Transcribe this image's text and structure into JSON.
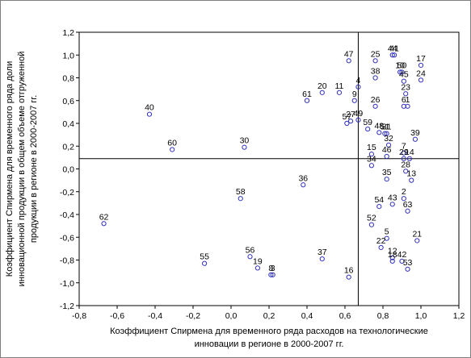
{
  "chart_data": {
    "type": "scatter",
    "title": "",
    "xlabel_lines": [
      "Коэффициент Спирмена для временного ряда расходов на технологические",
      "инновации в регионе в 2000-2007 гг."
    ],
    "ylabel_lines": [
      "Коэффициент Спирмена для временного ряда доли",
      "инновационной продукции в общем объеме отгруженной",
      "продукции в регионе в 2000-2007 гг."
    ],
    "xlim": [
      -0.8,
      1.2
    ],
    "ylim": [
      -1.2,
      1.2
    ],
    "xticks": [
      -0.8,
      -0.6,
      -0.4,
      -0.2,
      0.0,
      0.2,
      0.4,
      0.6,
      0.8,
      1.0,
      1.2
    ],
    "yticks": [
      -1.2,
      -1.0,
      -0.8,
      -0.6,
      -0.4,
      -0.2,
      0.0,
      0.2,
      0.4,
      0.6,
      0.8,
      1.0,
      1.2
    ],
    "xtick_labels": [
      "-0,8",
      "-0,6",
      "-0,4",
      "-0,2",
      "0,0",
      "0,2",
      "0,4",
      "0,6",
      "0,8",
      "1,0",
      "1,2"
    ],
    "ytick_labels": [
      "-1,2",
      "-1,0",
      "-0,8",
      "-0,6",
      "-0,4",
      "-0,2",
      "0,0",
      "0,2",
      "0,4",
      "0,6",
      "0,8",
      "1,0",
      "1,2"
    ],
    "grid": false,
    "ref_lines": {
      "x": 0.67,
      "y": 0.09
    },
    "colors": {
      "marker": "#3030c0",
      "ref_line": "#000000",
      "axis": "#000000"
    },
    "points": [
      {
        "label": "62",
        "x": -0.67,
        "y": -0.48
      },
      {
        "label": "40",
        "x": -0.43,
        "y": 0.48
      },
      {
        "label": "60",
        "x": -0.31,
        "y": 0.17
      },
      {
        "label": "55",
        "x": -0.14,
        "y": -0.83
      },
      {
        "label": "58",
        "x": 0.05,
        "y": -0.26
      },
      {
        "label": "30",
        "x": 0.07,
        "y": 0.19
      },
      {
        "label": "56",
        "x": 0.1,
        "y": -0.77
      },
      {
        "label": "19",
        "x": 0.14,
        "y": -0.87
      },
      {
        "label": "8",
        "x": 0.21,
        "y": -0.93
      },
      {
        "label": "3",
        "x": 0.22,
        "y": -0.93
      },
      {
        "label": "36",
        "x": 0.38,
        "y": -0.14
      },
      {
        "label": "61",
        "x": 0.4,
        "y": 0.6
      },
      {
        "label": "20",
        "x": 0.48,
        "y": 0.67
      },
      {
        "label": "37",
        "x": 0.48,
        "y": -0.79
      },
      {
        "label": "11",
        "x": 0.57,
        "y": 0.67
      },
      {
        "label": "57",
        "x": 0.61,
        "y": 0.4
      },
      {
        "label": "27",
        "x": 0.63,
        "y": 0.42
      },
      {
        "label": "16",
        "x": 0.62,
        "y": -0.95
      },
      {
        "label": "47",
        "x": 0.62,
        "y": 0.95
      },
      {
        "label": "9",
        "x": 0.65,
        "y": 0.6
      },
      {
        "label": "4",
        "x": 0.67,
        "y": 0.72
      },
      {
        "label": "49",
        "x": 0.67,
        "y": 0.43
      },
      {
        "label": "59",
        "x": 0.72,
        "y": 0.35
      },
      {
        "label": "15",
        "x": 0.74,
        "y": 0.13
      },
      {
        "label": "34",
        "x": 0.74,
        "y": 0.03
      },
      {
        "label": "52",
        "x": 0.74,
        "y": -0.49
      },
      {
        "label": "25",
        "x": 0.76,
        "y": 0.95
      },
      {
        "label": "38",
        "x": 0.76,
        "y": 0.8
      },
      {
        "label": "26",
        "x": 0.76,
        "y": 0.55
      },
      {
        "label": "48",
        "x": 0.78,
        "y": 0.32
      },
      {
        "label": "54",
        "x": 0.78,
        "y": -0.33
      },
      {
        "label": "22",
        "x": 0.79,
        "y": -0.69
      },
      {
        "label": "51",
        "x": 0.81,
        "y": 0.31
      },
      {
        "label": "31",
        "x": 0.82,
        "y": 0.31
      },
      {
        "label": "32",
        "x": 0.83,
        "y": 0.21
      },
      {
        "label": "46",
        "x": 0.82,
        "y": 0.11
      },
      {
        "label": "35",
        "x": 0.82,
        "y": -0.09
      },
      {
        "label": "5",
        "x": 0.82,
        "y": -0.61
      },
      {
        "label": "44",
        "x": 0.85,
        "y": 1.0
      },
      {
        "label": "41",
        "x": 0.86,
        "y": 1.0
      },
      {
        "label": "43",
        "x": 0.85,
        "y": -0.31
      },
      {
        "label": "12",
        "x": 0.85,
        "y": -0.78
      },
      {
        "label": "18",
        "x": 0.85,
        "y": -0.81
      },
      {
        "label": "10",
        "x": 0.89,
        "y": 0.85
      },
      {
        "label": "50",
        "x": 0.9,
        "y": 0.85
      },
      {
        "label": "45",
        "x": 0.91,
        "y": 0.77
      },
      {
        "label": "23",
        "x": 0.92,
        "y": 0.66
      },
      {
        "label": "6",
        "x": 0.91,
        "y": 0.55
      },
      {
        "label": "1",
        "x": 0.93,
        "y": 0.55
      },
      {
        "label": "7",
        "x": 0.91,
        "y": 0.14
      },
      {
        "label": "29",
        "x": 0.91,
        "y": 0.09
      },
      {
        "label": "14",
        "x": 0.94,
        "y": 0.09
      },
      {
        "label": "28",
        "x": 0.92,
        "y": -0.02
      },
      {
        "label": "2",
        "x": 0.91,
        "y": -0.26
      },
      {
        "label": "63",
        "x": 0.93,
        "y": -0.37
      },
      {
        "label": "42",
        "x": 0.9,
        "y": -0.81
      },
      {
        "label": "53",
        "x": 0.93,
        "y": -0.88
      },
      {
        "label": "39",
        "x": 0.97,
        "y": 0.26
      },
      {
        "label": "13",
        "x": 0.95,
        "y": -0.1
      },
      {
        "label": "21",
        "x": 0.98,
        "y": -0.63
      },
      {
        "label": "17",
        "x": 1.0,
        "y": 0.91
      },
      {
        "label": "24",
        "x": 1.0,
        "y": 0.78
      }
    ]
  }
}
